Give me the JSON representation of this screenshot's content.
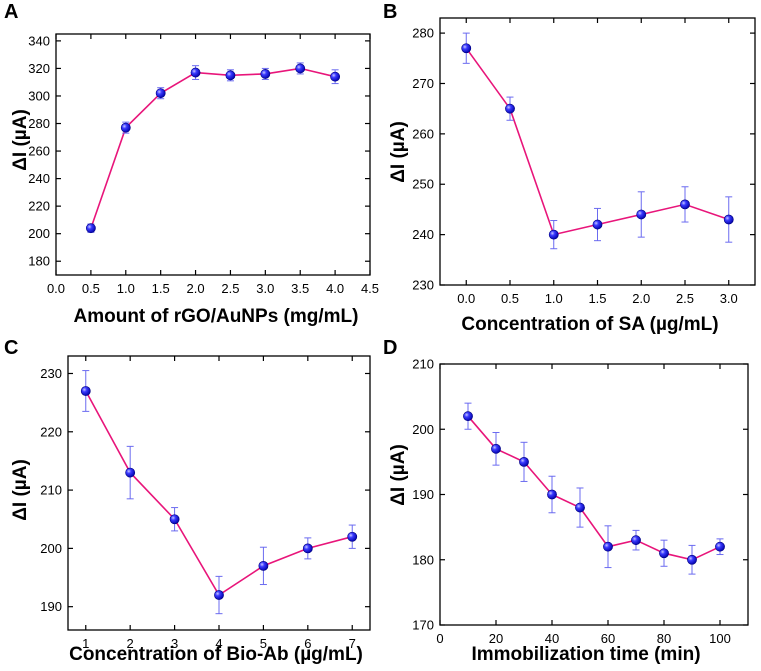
{
  "chart_data": [
    {
      "panel": "A",
      "type": "line",
      "xlabel": "Amount of rGO/AuNPs (mg/mL)",
      "ylabel": "ΔI (µA)",
      "xlim": [
        0.0,
        4.5
      ],
      "ylim": [
        170,
        345
      ],
      "xticks": [
        0.0,
        0.5,
        1.0,
        1.5,
        2.0,
        2.5,
        3.0,
        3.5,
        4.0,
        4.5
      ],
      "xtick_labels": [
        "0.0",
        "0.5",
        "1.0",
        "1.5",
        "2.0",
        "2.5",
        "3.0",
        "3.5",
        "4.0",
        "4.5"
      ],
      "yticks": [
        180,
        200,
        220,
        240,
        260,
        280,
        300,
        320,
        340
      ],
      "ytick_labels": [
        "180",
        "200",
        "220",
        "240",
        "260",
        "280",
        "300",
        "320",
        "340"
      ],
      "x": [
        0.5,
        1.0,
        1.5,
        2.0,
        2.5,
        3.0,
        3.5,
        4.0
      ],
      "y": [
        204,
        277,
        302,
        317,
        315,
        316,
        320,
        314
      ],
      "err": [
        3,
        4,
        4,
        5,
        4,
        4,
        4,
        5
      ],
      "line_color": "#e8157a",
      "marker_color": "#1a1ae6"
    },
    {
      "panel": "B",
      "type": "line",
      "xlabel": "Concentration of SA (µg/mL)",
      "ylabel": "ΔI (µA)",
      "xlim": [
        -0.3,
        3.3
      ],
      "ylim": [
        230,
        283
      ],
      "xticks": [
        0.0,
        0.5,
        1.0,
        1.5,
        2.0,
        2.5,
        3.0
      ],
      "xtick_labels": [
        "0.0",
        "0.5",
        "1.0",
        "1.5",
        "2.0",
        "2.5",
        "3.0"
      ],
      "yticks": [
        230,
        240,
        250,
        260,
        270,
        280
      ],
      "ytick_labels": [
        "230",
        "240",
        "250",
        "260",
        "270",
        "280"
      ],
      "x": [
        0.0,
        0.5,
        1.0,
        1.5,
        2.0,
        2.5,
        3.0
      ],
      "y": [
        277,
        265,
        240,
        242,
        244,
        246,
        243
      ],
      "err": [
        3,
        2.3,
        2.8,
        3.2,
        4.5,
        3.5,
        4.5
      ],
      "line_color": "#e8157a",
      "marker_color": "#1a1ae6"
    },
    {
      "panel": "C",
      "type": "line",
      "xlabel": "Concentration of Bio-Ab (µg/mL)",
      "ylabel": "ΔI (µA)",
      "xlim": [
        0.6,
        7.4
      ],
      "ylim": [
        186,
        233
      ],
      "xticks": [
        1,
        2,
        3,
        4,
        5,
        6,
        7
      ],
      "xtick_labels": [
        "1",
        "2",
        "3",
        "4",
        "5",
        "6",
        "7"
      ],
      "yticks": [
        190,
        200,
        210,
        220,
        230
      ],
      "ytick_labels": [
        "190",
        "200",
        "210",
        "220",
        "230"
      ],
      "x": [
        1,
        2,
        3,
        4,
        5,
        6,
        7
      ],
      "y": [
        227,
        213,
        205,
        192,
        197,
        200,
        202
      ],
      "err": [
        3.5,
        4.5,
        2,
        3.2,
        3.2,
        1.8,
        2
      ],
      "line_color": "#e8157a",
      "marker_color": "#1a1ae6"
    },
    {
      "panel": "D",
      "type": "line",
      "xlabel": "Immobilization time (min)",
      "ylabel": "ΔI (µA)",
      "xlim": [
        0,
        110
      ],
      "ylim": [
        170,
        210
      ],
      "xticks": [
        0,
        20,
        40,
        60,
        80,
        100
      ],
      "xtick_labels": [
        "0",
        "20",
        "40",
        "60",
        "80",
        "100"
      ],
      "yticks": [
        170,
        180,
        190,
        200,
        210
      ],
      "ytick_labels": [
        "170",
        "180",
        "190",
        "200",
        "210"
      ],
      "x": [
        10,
        20,
        30,
        40,
        50,
        60,
        70,
        80,
        90,
        100
      ],
      "y": [
        202,
        197,
        195,
        190,
        188,
        182,
        183,
        181,
        180,
        182
      ],
      "err": [
        2,
        2.5,
        3,
        2.8,
        3,
        3.2,
        1.5,
        2,
        2.2,
        1.2
      ],
      "line_color": "#e8157a",
      "marker_color": "#1a1ae6"
    }
  ]
}
